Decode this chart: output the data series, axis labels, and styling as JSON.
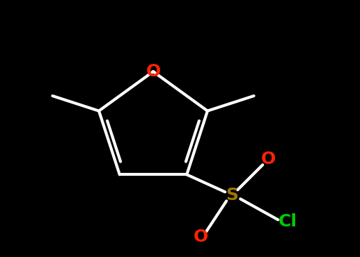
{
  "background_color": "#000000",
  "bond_color": "#ffffff",
  "atom_colors": {
    "O": "#ff2200",
    "S": "#a07800",
    "Cl": "#00cc00",
    "C": "#ffffff"
  },
  "bond_width": 3.0,
  "font_size_atoms": 18,
  "figsize": [
    5.17,
    3.7
  ],
  "dpi": 100
}
